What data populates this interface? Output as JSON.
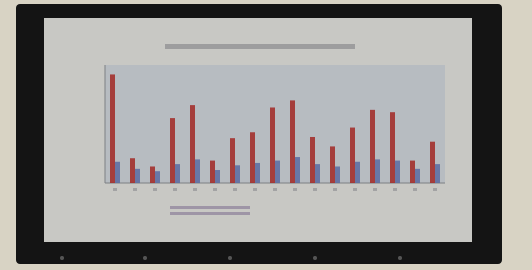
{
  "chart_data": {
    "type": "bar",
    "categories": [
      null,
      null,
      null,
      null,
      null,
      null,
      null,
      null,
      null,
      null,
      null,
      null,
      null,
      null,
      null,
      null,
      null
    ],
    "series": [
      {
        "color": "#a3302e",
        "values": [
          92,
          21,
          14,
          55,
          66,
          19,
          38,
          43,
          64,
          70,
          39,
          31,
          47,
          62,
          60,
          19,
          35
        ]
      },
      {
        "color": "#5f6fa3",
        "values": [
          18,
          12,
          10,
          16,
          20,
          11,
          15,
          17,
          19,
          22,
          16,
          14,
          18,
          20,
          19,
          12,
          16
        ]
      }
    ],
    "ylim": [
      0,
      100
    ]
  }
}
